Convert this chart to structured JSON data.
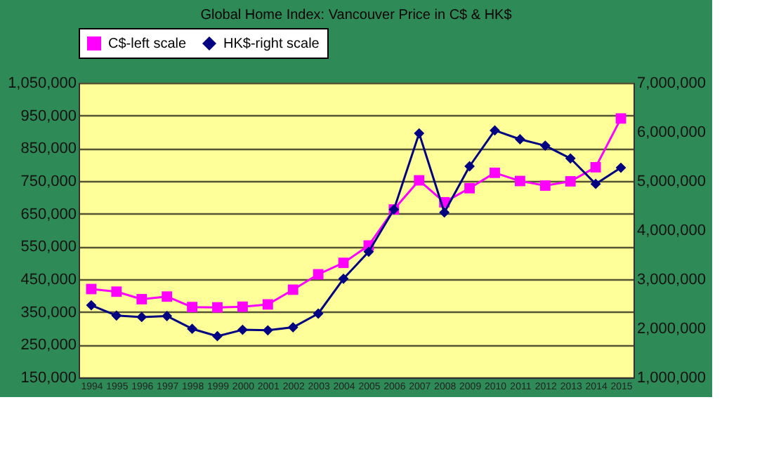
{
  "chart_data": {
    "type": "line",
    "title": "Global Home Index: Vancouver Price in C$ & HK$",
    "categories": [
      "1994",
      "1995",
      "1996",
      "1997",
      "1998",
      "1999",
      "2000",
      "2001",
      "2002",
      "2003",
      "2004",
      "2005",
      "2006",
      "2007",
      "2008",
      "2009",
      "2010",
      "2011",
      "2012",
      "2013",
      "2014",
      "2015"
    ],
    "series": [
      {
        "name": "C$-left scale",
        "color": "#ff00ff",
        "marker": "square",
        "axis": "y",
        "values": [
          420000,
          412000,
          389000,
          397000,
          365000,
          364000,
          366000,
          373000,
          418000,
          465000,
          500000,
          553000,
          663000,
          752000,
          685000,
          728000,
          775000,
          750000,
          736000,
          749000,
          792000,
          941000
        ]
      },
      {
        "name": "HK$-right scale",
        "color": "#000080",
        "marker": "diamond",
        "axis": "y2",
        "values": [
          2470000,
          2260000,
          2230000,
          2250000,
          1990000,
          1840000,
          1970000,
          1960000,
          2020000,
          2300000,
          3010000,
          3560000,
          4420000,
          5970000,
          4360000,
          5300000,
          6030000,
          5850000,
          5720000,
          5460000,
          4940000,
          5270000
        ]
      }
    ],
    "ylim": [
      150000,
      1050000
    ],
    "yticks": [
      {
        "value": 150000,
        "label": "150,000"
      },
      {
        "value": 250000,
        "label": "250,000"
      },
      {
        "value": 350000,
        "label": "350,000"
      },
      {
        "value": 450000,
        "label": "450,000"
      },
      {
        "value": 550000,
        "label": "550,000"
      },
      {
        "value": 650000,
        "label": "650,000"
      },
      {
        "value": 750000,
        "label": "750,000"
      },
      {
        "value": 850000,
        "label": "850,000"
      },
      {
        "value": 950000,
        "label": "950,000"
      },
      {
        "value": 1050000,
        "label": "1,050,000"
      }
    ],
    "y2lim": [
      1000000,
      7000000
    ],
    "y2ticks": [
      {
        "value": 1000000,
        "label": "1,000,000"
      },
      {
        "value": 2000000,
        "label": "2,000,000"
      },
      {
        "value": 3000000,
        "label": "3,000,000"
      },
      {
        "value": 4000000,
        "label": "4,000,000"
      },
      {
        "value": 5000000,
        "label": "5,000,000"
      },
      {
        "value": 6000000,
        "label": "6,000,000"
      },
      {
        "value": 7000000,
        "label": "7,000,000"
      }
    ],
    "grid": "y",
    "legend": "top"
  }
}
